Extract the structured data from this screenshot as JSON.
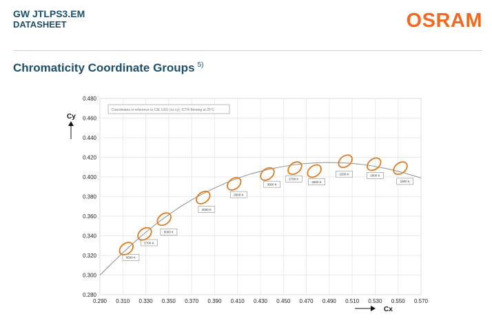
{
  "header": {
    "title": "GW JTLPS3.EM",
    "subtitle": "DATASHEET",
    "logo": "OSRAM",
    "brand_color": "#f26a21",
    "title_color": "#1c4e6b"
  },
  "section": {
    "title": "Chromaticity Coordinate Groups",
    "footnote": "5)"
  },
  "chart_data": {
    "type": "scatter",
    "title": "",
    "xlabel": "Cx",
    "ylabel": "Cy",
    "xlim": [
      0.29,
      0.57
    ],
    "ylim": [
      0.28,
      0.48
    ],
    "xticks": [
      "0.290",
      "0.310",
      "0.330",
      "0.350",
      "0.370",
      "0.390",
      "0.410",
      "0.430",
      "0.450",
      "0.470",
      "0.490",
      "0.510",
      "0.530",
      "0.550",
      "0.570"
    ],
    "yticks": [
      "0.480",
      "0.460",
      "0.440",
      "0.420",
      "0.400",
      "0.380",
      "0.360",
      "0.340",
      "0.320",
      "0.300",
      "0.280"
    ],
    "grid": true,
    "annotation": "Coordinates in reference to CIE 1931 (cx cy); ICTR Binning at 25°C",
    "planckian_locus": [
      [
        0.29,
        0.3
      ],
      [
        0.31,
        0.323
      ],
      [
        0.33,
        0.344
      ],
      [
        0.35,
        0.362
      ],
      [
        0.37,
        0.377
      ],
      [
        0.39,
        0.389
      ],
      [
        0.41,
        0.399
      ],
      [
        0.43,
        0.406
      ],
      [
        0.45,
        0.411
      ],
      [
        0.47,
        0.414
      ],
      [
        0.49,
        0.415
      ],
      [
        0.51,
        0.414
      ],
      [
        0.53,
        0.411
      ],
      [
        0.55,
        0.406
      ],
      [
        0.57,
        0.399
      ]
    ],
    "groups": [
      {
        "label": "",
        "cx": 0.313,
        "cy": 0.327
      },
      {
        "label": "",
        "cx": 0.329,
        "cy": 0.342
      },
      {
        "label": "",
        "cx": 0.346,
        "cy": 0.357
      },
      {
        "label": "",
        "cx": 0.38,
        "cy": 0.379
      },
      {
        "label": "",
        "cx": 0.407,
        "cy": 0.393
      },
      {
        "label": "",
        "cx": 0.436,
        "cy": 0.403
      },
      {
        "label": "",
        "cx": 0.46,
        "cy": 0.409
      },
      {
        "label": "",
        "cx": 0.477,
        "cy": 0.406
      },
      {
        "label": "",
        "cx": 0.504,
        "cy": 0.416
      },
      {
        "label": "",
        "cx": 0.529,
        "cy": 0.413
      },
      {
        "label": "",
        "cx": 0.552,
        "cy": 0.409
      }
    ],
    "cct_labels": [
      {
        "text": "6500 K",
        "cx": 0.317,
        "cy": 0.318
      },
      {
        "text": "5700 K",
        "cx": 0.333,
        "cy": 0.333
      },
      {
        "text": "5000 K",
        "cx": 0.35,
        "cy": 0.344
      },
      {
        "text": "4000 K",
        "cx": 0.383,
        "cy": 0.367
      },
      {
        "text": "3500 K",
        "cx": 0.411,
        "cy": 0.382
      },
      {
        "text": "3000 K",
        "cx": 0.44,
        "cy": 0.3925
      },
      {
        "text": "2700 K",
        "cx": 0.459,
        "cy": 0.398
      },
      {
        "text": "2600 K",
        "cx": 0.479,
        "cy": 0.395
      },
      {
        "text": "2200 K",
        "cx": 0.503,
        "cy": 0.403
      },
      {
        "text": "2000 K",
        "cx": 0.53,
        "cy": 0.4015
      },
      {
        "text": "1800 K",
        "cx": 0.556,
        "cy": 0.3955
      }
    ],
    "ellipse_color": "#e07b1f",
    "curve_color": "#8c8c8c"
  }
}
